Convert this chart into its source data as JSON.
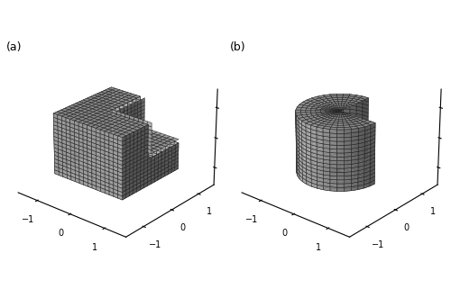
{
  "title_a": "(a)",
  "title_b": "(b)",
  "elev": 25,
  "azim_a": -50,
  "azim_b": -50,
  "axis_lim": [
    -1.6,
    1.6
  ],
  "tick_vals": [
    -1,
    0,
    1
  ],
  "grid_color": "#222222",
  "face_color": "#bbbbbb",
  "face_color_dark": "#888888",
  "face_alpha": 0.85,
  "n_grid": 16,
  "n_cyl": 40,
  "background_color": "#ffffff",
  "linewidth": 0.4
}
